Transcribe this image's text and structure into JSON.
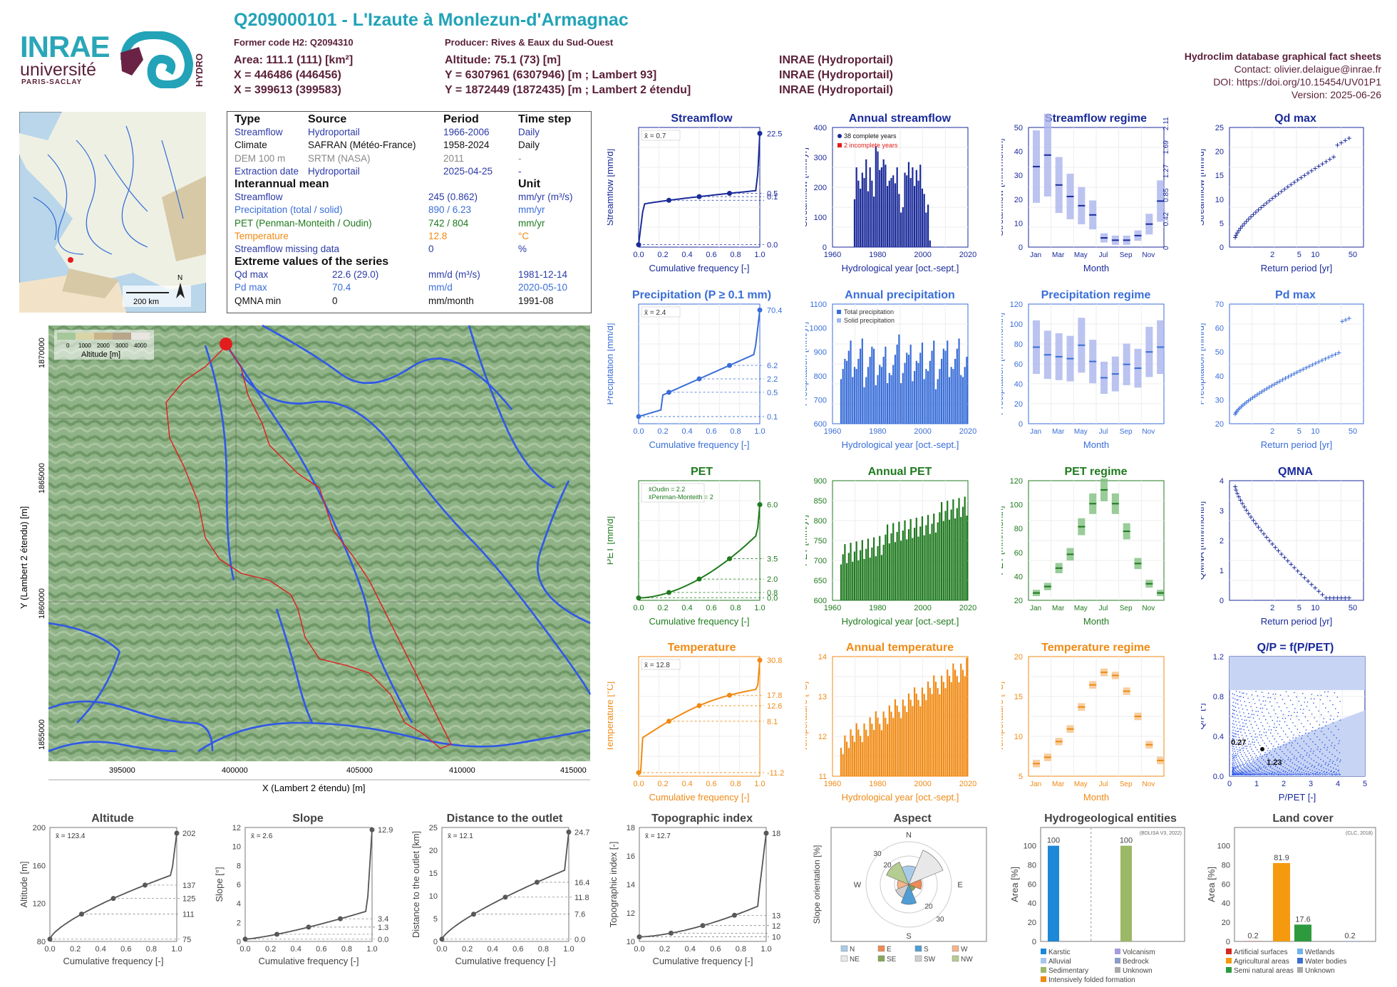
{
  "header": {
    "title": "Q209000101 - L'Izaute à Monlezun-d'Armagnac",
    "former_code": "Former code H2: Q2094310",
    "producer": "Producer: Rives & Eaux du Sud-Ouest",
    "area": "Area: 111.1 (111) [km²]",
    "x_l93": "X = 446486 (446456)",
    "x_l2": "X = 399613 (399583)",
    "altitude": "Altitude: 75.1 (73) [m]",
    "y_l93": "Y = 6307961 (6307946) [m ; Lambert 93]",
    "y_l2": "Y = 1872449 (1872435) [m ; Lambert 2 étendu]",
    "src1": "INRAE (Hydroportail)",
    "src2": "INRAE (Hydroportail)",
    "src3": "INRAE (Hydroportail)",
    "db_title": "Hydroclim database graphical fact sheets",
    "contact": "Contact: olivier.delaigue@inrae.fr",
    "doi": "DOI: https://doi.org/10.15454/UV01P1",
    "version": "Version: 2025-06-26"
  },
  "logos": {
    "inrae": "INRAE",
    "univ": "université",
    "paris_saclay": "PARIS-SACLAY",
    "hydro": "HYDRO"
  },
  "info_table": {
    "h_type": "Type",
    "h_source": "Source",
    "h_period": "Period",
    "h_timestep": "Time step",
    "rows": [
      {
        "type": "Streamflow",
        "source": "Hydroportail",
        "period": "1966-2006",
        "step": "Daily"
      },
      {
        "type": "Climate",
        "source": "SAFRAN (Météo-France)",
        "period": "1958-2024",
        "step": "Daily"
      },
      {
        "type": "DEM 100 m",
        "source": "SRTM (NASA)",
        "period": "2011",
        "step": "-"
      },
      {
        "type": "Extraction date",
        "source": "Hydroportail",
        "period": "2025-04-25",
        "step": "-"
      }
    ],
    "h_interannual": "Interannual mean",
    "h_unit": "Unit",
    "means": [
      {
        "name": "Streamflow",
        "value": "245 (0.862)",
        "unit": "mm/yr (m³/s)"
      },
      {
        "name": "Precipitation (total / solid)",
        "value": "890 / 6.23",
        "unit": "mm/yr"
      },
      {
        "name": "PET (Penman-Monteith / Oudin)",
        "value": "742 / 804",
        "unit": "mm/yr"
      },
      {
        "name": "Temperature",
        "value": "12.8",
        "unit": "°C"
      },
      {
        "name": "Streamflow missing data",
        "value": "0",
        "unit": "%"
      }
    ],
    "h_extreme": "Extreme values of the series",
    "extremes": [
      {
        "name": "Qd max",
        "value": "22.6 (29.0)",
        "unit": "mm/d (m³/s)",
        "date": "1981-12-14"
      },
      {
        "name": "Pd max",
        "value": "70.4",
        "unit": "mm/d",
        "date": "2020-05-10"
      },
      {
        "name": "QMNA min",
        "value": "0",
        "unit": "mm/month",
        "date": "1991-08"
      }
    ]
  },
  "overview_map": {
    "scale": "200 km",
    "north": "N"
  },
  "basin_map": {
    "legend_title": "Altitude [m]",
    "legend_ticks": [
      "0",
      "1000",
      "2000",
      "3000",
      "4000"
    ],
    "xlabel": "X (Lambert 2 étendu) [m]",
    "ylabel": "Y (Lambert 2 étendu) [m]",
    "xticks": [
      "395000",
      "400000",
      "405000",
      "410000",
      "415000"
    ],
    "yticks": [
      "1855000",
      "1860000",
      "1865000",
      "1870000"
    ]
  },
  "colors": {
    "streamflow": "#1a2a9a",
    "precip": "#3a6ed8",
    "pet": "#1f7a1f",
    "temp": "#f08a14",
    "gray": "#555555",
    "teal": "#22a3b8",
    "maroon": "#5a1f38"
  },
  "chart_data": [
    {
      "id": "streamflow_fdc",
      "type": "line",
      "title": "Streamflow",
      "xlabel": "Cumulative frequency [-]",
      "ylabel": "Streamflow [mm/d]",
      "mean_label": "x̄ = 0.7",
      "right_ticks": [
        "22.5",
        "0.5",
        "0.1",
        "0.0"
      ],
      "xticks": [
        "0.0",
        "0.2",
        "0.4",
        "0.6",
        "0.8",
        "1.0"
      ]
    },
    {
      "id": "annual_streamflow",
      "type": "bar",
      "title": "Annual streamflow",
      "xlabel": "Hydrological year [oct.-sept.]",
      "ylabel": "Streamflow [mm/yr]",
      "legend": [
        "38 complete years",
        "2 incomplete years"
      ],
      "xticks": [
        "1960",
        "1980",
        "2000",
        "2020"
      ],
      "yticks": [
        "0",
        "100",
        "200",
        "300",
        "400"
      ],
      "x": [
        1966,
        1967,
        1968,
        1969,
        1970,
        1971,
        1972,
        1973,
        1974,
        1975,
        1976,
        1977,
        1978,
        1979,
        1980,
        1981,
        1982,
        1983,
        1984,
        1985,
        1986,
        1987,
        1988,
        1989,
        1990,
        1991,
        1992,
        1993,
        1994,
        1995,
        1996,
        1997,
        1998,
        1999,
        2000,
        2001,
        2002,
        2003,
        2004,
        2005
      ],
      "values": [
        180,
        300,
        250,
        220,
        280,
        260,
        330,
        210,
        300,
        250,
        190,
        380,
        360,
        290,
        300,
        330,
        310,
        230,
        250,
        260,
        270,
        240,
        300,
        200,
        130,
        150,
        280,
        270,
        320,
        260,
        300,
        230,
        290,
        250,
        310,
        220,
        200,
        130,
        160,
        25
      ]
    },
    {
      "id": "streamflow_regime",
      "type": "bar",
      "title": "Streamflow regime",
      "xlabel": "Month",
      "ylabel": "Streamflow [mm/month]",
      "yticks": [
        "0",
        "10",
        "20",
        "30",
        "40",
        "50"
      ],
      "right_ticks": [
        "0",
        "0.42",
        "0.85",
        "1.27",
        "1.69",
        "2.11"
      ],
      "categories": [
        "Jan",
        "Feb",
        "Mar",
        "Apr",
        "May",
        "Jun",
        "Jul",
        "Aug",
        "Sep",
        "Oct",
        "Nov",
        "Dec"
      ],
      "values": [
        35,
        40,
        27,
        22,
        18,
        14,
        4,
        3,
        3,
        5,
        10,
        20
      ]
    },
    {
      "id": "qd_max",
      "type": "scatter",
      "title": "Qd max",
      "xlabel": "Return period [yr]",
      "ylabel": "Streamflow [mm/d]",
      "xticks": [
        "2",
        "5",
        "10",
        "50"
      ],
      "yticks": [
        "0",
        "5",
        "10",
        "15",
        "20",
        "25"
      ]
    },
    {
      "id": "precip_fdc",
      "type": "line",
      "title": "Precipitation (P ≥ 0.1 mm)",
      "xlabel": "Cumulative frequency [-]",
      "ylabel": "Precipitation [mm/d]",
      "mean_label": "x̄ = 2.4",
      "right_ticks": [
        "70.4",
        "6.2",
        "2.2",
        "0.5",
        "0.1"
      ],
      "xticks": [
        "0.0",
        "0.2",
        "0.4",
        "0.6",
        "0.8",
        "1.0"
      ]
    },
    {
      "id": "annual_precip",
      "type": "bar",
      "title": "Annual precipitation",
      "xlabel": "Hydrological year [oct.-sept.]",
      "ylabel": "Precipitation [mm/yr]",
      "legend": [
        "Total precipitation",
        "Solid precipitation"
      ],
      "xticks": [
        "1960",
        "1980",
        "2000",
        "2020"
      ],
      "yticks": [
        "600",
        "700",
        "800",
        "900",
        "1000",
        "1100"
      ]
    },
    {
      "id": "precip_regime",
      "type": "bar",
      "title": "Precipitation regime",
      "xlabel": "Month",
      "ylabel": "Precipitation [mm/month]",
      "yticks": [
        "0",
        "20",
        "40",
        "60",
        "80",
        "100",
        "120"
      ],
      "categories": [
        "Jan",
        "Feb",
        "Mar",
        "Apr",
        "May",
        "Jun",
        "Jul",
        "Aug",
        "Sep",
        "Oct",
        "Nov",
        "Dec"
      ],
      "values": [
        80,
        72,
        70,
        68,
        82,
        65,
        48,
        52,
        62,
        58,
        75,
        80
      ]
    },
    {
      "id": "pd_max",
      "type": "scatter",
      "title": "Pd max",
      "xlabel": "Return period [yr]",
      "ylabel": "Precipitation [mm/d]",
      "xticks": [
        "2",
        "5",
        "10",
        "50"
      ],
      "yticks": [
        "20",
        "30",
        "40",
        "50",
        "60",
        "70"
      ]
    },
    {
      "id": "pet_fdc",
      "type": "line",
      "title": "PET",
      "xlabel": "Cumulative frequency [-]",
      "ylabel": "PET [mm/d]",
      "legend": [
        "x̄Oudin = 2.2",
        "x̄Penman-Monteith = 2"
      ],
      "right_ticks": [
        "6.0",
        "3.5",
        "2.0",
        "0.8",
        "0.0"
      ],
      "xticks": [
        "0.0",
        "0.2",
        "0.4",
        "0.6",
        "0.8",
        "1.0"
      ]
    },
    {
      "id": "annual_pet",
      "type": "bar",
      "title": "Annual PET",
      "xlabel": "Hydrological year [oct.-sept.]",
      "ylabel": "PET [mm/yr]",
      "xticks": [
        "1960",
        "1980",
        "2000",
        "2020"
      ],
      "yticks": [
        "600",
        "650",
        "700",
        "750",
        "800",
        "850",
        "900"
      ]
    },
    {
      "id": "pet_regime",
      "type": "bar",
      "title": "PET regime",
      "xlabel": "Month",
      "ylabel": "PET [mm/month]",
      "yticks": [
        "20",
        "40",
        "60",
        "80",
        "100",
        "120"
      ],
      "categories": [
        "Jan",
        "Feb",
        "Mar",
        "Apr",
        "May",
        "Jun",
        "Jul",
        "Aug",
        "Sep",
        "Oct",
        "Nov",
        "Dec"
      ],
      "values": [
        18,
        25,
        45,
        60,
        90,
        115,
        130,
        115,
        85,
        50,
        28,
        18
      ]
    },
    {
      "id": "qmna",
      "type": "scatter",
      "title": "QMNA",
      "xlabel": "Return period [yr]",
      "ylabel": "QMNA [mm/month]",
      "xticks": [
        "2",
        "5",
        "10",
        "50"
      ],
      "yticks": [
        "0",
        "1",
        "2",
        "3",
        "4"
      ]
    },
    {
      "id": "temp_fdc",
      "type": "line",
      "title": "Temperature",
      "xlabel": "Cumulative frequency [-]",
      "ylabel": "Temperature [°C]",
      "mean_label": "x̄ = 12.8",
      "right_ticks": [
        "30.8",
        "17.8",
        "12.6",
        "8.1",
        "-11.2"
      ],
      "xticks": [
        "0.0",
        "0.2",
        "0.4",
        "0.6",
        "0.8",
        "1.0"
      ]
    },
    {
      "id": "annual_temp",
      "type": "bar",
      "title": "Annual temperature",
      "xlabel": "Hydrological year [oct.-sept.]",
      "ylabel": "Temperature [°C]",
      "xticks": [
        "1960",
        "1980",
        "2000",
        "2020"
      ],
      "yticks": [
        "11",
        "12",
        "13",
        "14"
      ]
    },
    {
      "id": "temp_regime",
      "type": "bar",
      "title": "Temperature regime",
      "xlabel": "Month",
      "ylabel": "Temperature [°C]",
      "yticks": [
        "5",
        "10",
        "15",
        "20"
      ],
      "categories": [
        "Jan",
        "Feb",
        "Mar",
        "Apr",
        "May",
        "Jun",
        "Jul",
        "Aug",
        "Sep",
        "Oct",
        "Nov",
        "Dec"
      ],
      "values": [
        6,
        7,
        9.5,
        11.5,
        15,
        18.5,
        20.5,
        20,
        17.5,
        13.5,
        9,
        6.5
      ]
    },
    {
      "id": "q_over_p",
      "type": "scatter",
      "title": "Q/P = f(P/PET)",
      "xlabel": "P/PET [-]",
      "ylabel": "Q/P [-]",
      "annotations": [
        "0.27",
        "1.23"
      ],
      "xticks": [
        "0",
        "1",
        "2",
        "3",
        "4",
        "5"
      ],
      "yticks": [
        "0.0",
        "0.4",
        "0.8",
        "1.2"
      ]
    },
    {
      "id": "altitude_cdf",
      "type": "line",
      "title": "Altitude",
      "xlabel": "Cumulative frequency [-]",
      "ylabel": "Altitude [m]",
      "mean_label": "x̄ = 123.4",
      "right_ticks": [
        "202",
        "137",
        "125",
        "111",
        "75"
      ],
      "yticks": [
        "80",
        "120",
        "160",
        "200"
      ],
      "xticks": [
        "0.0",
        "0.2",
        "0.4",
        "0.6",
        "0.8",
        "1.0"
      ]
    },
    {
      "id": "slope_cdf",
      "type": "line",
      "title": "Slope",
      "xlabel": "Cumulative frequency [-]",
      "ylabel": "Slope [°]",
      "mean_label": "x̄ = 2.6",
      "right_ticks": [
        "12.9",
        "3.4",
        "1.3",
        "0.0"
      ],
      "yticks": [
        "0",
        "2",
        "4",
        "6",
        "8",
        "10",
        "12"
      ],
      "xticks": [
        "0.0",
        "0.2",
        "0.4",
        "0.6",
        "0.8",
        "1.0"
      ]
    },
    {
      "id": "distance_cdf",
      "type": "line",
      "title": "Distance to the outlet",
      "xlabel": "Cumulative frequency [-]",
      "ylabel": "Distance to the outlet [km]",
      "mean_label": "x̄ = 12.1",
      "right_ticks": [
        "24.7",
        "16.4",
        "11.8",
        "7.6",
        "0.0"
      ],
      "yticks": [
        "0",
        "5",
        "10",
        "15",
        "20",
        "25"
      ],
      "xticks": [
        "0.0",
        "0.2",
        "0.4",
        "0.6",
        "0.8",
        "1.0"
      ]
    },
    {
      "id": "topo_index_cdf",
      "type": "line",
      "title": "Topographic index",
      "xlabel": "Cumulative frequency [-]",
      "ylabel": "Topographic index [-]",
      "mean_label": "x̄ = 12.7",
      "right_ticks": [
        "18",
        "13",
        "12",
        "10"
      ],
      "yticks": [
        "10",
        "12",
        "14",
        "16",
        "18"
      ],
      "xticks": [
        "0.0",
        "0.2",
        "0.4",
        "0.6",
        "0.8",
        "1.0"
      ]
    },
    {
      "id": "aspect",
      "type": "pie",
      "title": "Aspect",
      "ylabel": "Slope orientation [%]",
      "directions": [
        "N",
        "E",
        "S",
        "W"
      ],
      "ring_labels": [
        "30",
        "20",
        "20",
        "30"
      ],
      "legend": [
        "N",
        "E",
        "S",
        "W",
        "NE",
        "SE",
        "SW",
        "NW"
      ]
    },
    {
      "id": "hydrogeo",
      "type": "bar",
      "title": "Hydrogeological entities",
      "ylabel": "Area [%]",
      "source": "(BDLISA V3, 2022)",
      "values": [
        100,
        100
      ],
      "legend": [
        "Karstic",
        "Volcanism",
        "Alluvial",
        "Bedrock",
        "Sedimentary",
        "Unknown",
        "Intensively folded formation"
      ],
      "yticks": [
        "0",
        "20",
        "40",
        "60",
        "80",
        "100"
      ]
    },
    {
      "id": "land_cover",
      "type": "bar",
      "title": "Land cover",
      "ylabel": "Area [%]",
      "source": "(CLC, 2018)",
      "values": [
        0.2,
        81.9,
        17.6,
        0.2
      ],
      "value_labels": [
        "0.2",
        "81.9",
        "17.6",
        "0.2"
      ],
      "legend": [
        "Artificial surfaces",
        "Wetlands",
        "Agricultural areas",
        "Water bodies",
        "Semi natural areas",
        "Unknown"
      ],
      "yticks": [
        "0",
        "20",
        "40",
        "60",
        "80",
        "100"
      ]
    }
  ]
}
